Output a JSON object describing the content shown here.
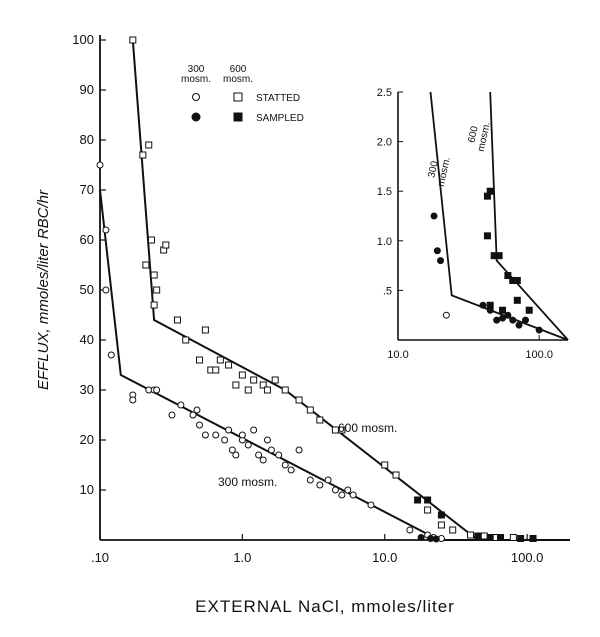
{
  "chart_data": {
    "type": "scatter",
    "title": "",
    "xlabel": "EXTERNAL NaCl, mmoles/liter",
    "ylabel": "EFFLUX, mmoles/liter RBC/hr",
    "x_scale": "log",
    "xlim": [
      0.1,
      200
    ],
    "ylim": [
      0,
      100
    ],
    "x_ticks": [
      0.1,
      1.0,
      10.0,
      100.0
    ],
    "x_tick_labels": [
      ".10",
      "1.0",
      "10.0",
      "100.0"
    ],
    "y_ticks": [
      10,
      20,
      30,
      40,
      50,
      60,
      70,
      80,
      90,
      100
    ],
    "y_tick_labels": [
      "10",
      "20",
      "30",
      "40",
      "50",
      "60",
      "70",
      "80",
      "90",
      "100"
    ],
    "legend": {
      "header": [
        "300",
        "600"
      ],
      "header_units": [
        "mosm.",
        "mosm."
      ],
      "statted_label": "STATTED",
      "sampled_label": "SAMPLED",
      "placement": "top-center"
    },
    "series_labels": [
      "300 mosm.",
      "600 mosm."
    ],
    "series": [
      {
        "name": "300 mosm.",
        "fit_line": [
          [
            0.1,
            70
          ],
          [
            0.14,
            33
          ],
          [
            24,
            0
          ],
          [
            200,
            0
          ]
        ],
        "statted": [
          [
            0.1,
            75
          ],
          [
            0.11,
            62
          ],
          [
            0.11,
            50
          ],
          [
            0.12,
            37
          ],
          [
            0.17,
            29
          ],
          [
            0.17,
            28
          ],
          [
            0.22,
            30
          ],
          [
            0.24,
            30
          ],
          [
            0.25,
            30
          ],
          [
            0.32,
            25
          ],
          [
            0.37,
            27
          ],
          [
            0.45,
            25
          ],
          [
            0.48,
            26
          ],
          [
            0.5,
            23
          ],
          [
            0.55,
            21
          ],
          [
            0.65,
            21
          ],
          [
            0.75,
            20
          ],
          [
            0.8,
            22
          ],
          [
            0.85,
            18
          ],
          [
            0.9,
            17
          ],
          [
            1.0,
            20
          ],
          [
            1.0,
            21
          ],
          [
            1.1,
            19
          ],
          [
            1.2,
            22
          ],
          [
            1.3,
            17
          ],
          [
            1.4,
            16
          ],
          [
            1.5,
            20
          ],
          [
            1.6,
            18
          ],
          [
            1.8,
            17
          ],
          [
            2.0,
            15
          ],
          [
            2.2,
            14
          ],
          [
            2.5,
            18
          ],
          [
            3.0,
            12
          ],
          [
            3.5,
            11
          ],
          [
            4.0,
            12
          ],
          [
            4.5,
            10
          ],
          [
            5.0,
            9
          ],
          [
            5.5,
            10
          ],
          [
            6.0,
            9
          ],
          [
            8.0,
            7
          ],
          [
            15.0,
            2
          ],
          [
            20.0,
            1
          ],
          [
            22.0,
            0.5
          ],
          [
            25.0,
            0.3
          ]
        ],
        "sampled": [
          [
            18.0,
            0.5
          ],
          [
            21.0,
            0.3
          ],
          [
            23.0,
            0.2
          ]
        ]
      },
      {
        "name": "600 mosm.",
        "fit_line": [
          [
            0.17,
            100
          ],
          [
            0.24,
            44
          ],
          [
            2.0,
            30
          ],
          [
            45,
            0
          ],
          [
            200,
            0
          ]
        ],
        "statted": [
          [
            0.17,
            100
          ],
          [
            0.2,
            77
          ],
          [
            0.22,
            79
          ],
          [
            0.21,
            55
          ],
          [
            0.23,
            60
          ],
          [
            0.24,
            53
          ],
          [
            0.25,
            50
          ],
          [
            0.24,
            47
          ],
          [
            0.28,
            58
          ],
          [
            0.29,
            59
          ],
          [
            0.35,
            44
          ],
          [
            0.4,
            40
          ],
          [
            0.5,
            36
          ],
          [
            0.55,
            42
          ],
          [
            0.6,
            34
          ],
          [
            0.65,
            34
          ],
          [
            0.7,
            36
          ],
          [
            0.8,
            35
          ],
          [
            0.9,
            31
          ],
          [
            1.0,
            33
          ],
          [
            1.1,
            30
          ],
          [
            1.2,
            32
          ],
          [
            1.4,
            31
          ],
          [
            1.5,
            30
          ],
          [
            1.7,
            32
          ],
          [
            2.0,
            30
          ],
          [
            2.5,
            28
          ],
          [
            3.0,
            26
          ],
          [
            3.5,
            24
          ],
          [
            4.5,
            22
          ],
          [
            5.0,
            22
          ],
          [
            10.0,
            15
          ],
          [
            12.0,
            13
          ],
          [
            20.0,
            6
          ],
          [
            25.0,
            3
          ],
          [
            30.0,
            2
          ],
          [
            40.0,
            1
          ],
          [
            50.0,
            0.8
          ],
          [
            60.0,
            0.5
          ],
          [
            80.0,
            0.5
          ]
        ],
        "sampled": [
          [
            17.0,
            8
          ],
          [
            20.0,
            8
          ],
          [
            25.0,
            5
          ],
          [
            45.0,
            0.8
          ],
          [
            55.0,
            0.5
          ],
          [
            65.0,
            0.5
          ],
          [
            90.0,
            0.3
          ],
          [
            110.0,
            0.3
          ]
        ]
      }
    ],
    "inset": {
      "type": "scatter",
      "x_scale": "log",
      "xlim": [
        10,
        160
      ],
      "ylim": [
        0,
        2.5
      ],
      "x_ticks": [
        10,
        100
      ],
      "x_tick_labels": [
        "10.0",
        "100.0"
      ],
      "y_ticks": [
        0.5,
        1.0,
        1.5,
        2.0,
        2.5
      ],
      "y_tick_labels": [
        ".5",
        "1.0",
        "1.5",
        "2.0",
        "2.5"
      ],
      "series_labels": [
        {
          "lines": [
            "300",
            "mosm."
          ]
        },
        {
          "lines": [
            "600",
            "mosm."
          ]
        }
      ],
      "series": [
        {
          "name": "300 mosm.",
          "fit_line": [
            [
              17,
              2.5
            ],
            [
              24,
              0.45
            ],
            [
              160,
              0
            ]
          ],
          "statted": [
            [
              22,
              0.25
            ]
          ],
          "sampled": [
            [
              18,
              1.25
            ],
            [
              19,
              0.9
            ],
            [
              20,
              0.8
            ],
            [
              40,
              0.35
            ],
            [
              45,
              0.3
            ],
            [
              50,
              0.2
            ],
            [
              55,
              0.22
            ],
            [
              60,
              0.25
            ],
            [
              65,
              0.2
            ],
            [
              72,
              0.15
            ],
            [
              80,
              0.2
            ],
            [
              100,
              0.1
            ]
          ]
        },
        {
          "name": "600 mosm.",
          "fit_line": [
            [
              45,
              2.5
            ],
            [
              50,
              0.8
            ],
            [
              160,
              0
            ]
          ],
          "statted": [],
          "sampled": [
            [
              43,
              1.45
            ],
            [
              45,
              1.5
            ],
            [
              43,
              1.05
            ],
            [
              48,
              0.85
            ],
            [
              52,
              0.85
            ],
            [
              60,
              0.65
            ],
            [
              65,
              0.6
            ],
            [
              70,
              0.6
            ],
            [
              70,
              0.4
            ],
            [
              85,
              0.3
            ],
            [
              45,
              0.35
            ],
            [
              55,
              0.3
            ]
          ]
        }
      ]
    }
  }
}
